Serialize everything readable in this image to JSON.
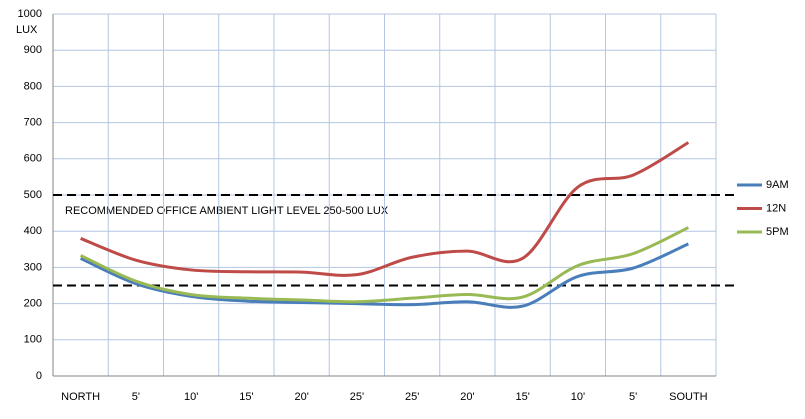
{
  "chart_data": {
    "type": "line",
    "y_label": "LUX",
    "annotation": "RECOMMENDED  OFFICE  AMBIENT  LIGHT  LEVEL  250-500  LUX",
    "reference_lines": [
      250,
      500
    ],
    "categories": [
      "NORTH",
      "5'",
      "10'",
      "15'",
      "20'",
      "25'",
      "25'",
      "20'",
      "15'",
      "10'",
      "5'",
      "SOUTH"
    ],
    "series": [
      {
        "name": "9AM",
        "color": "#4a7ebb",
        "values": [
          325,
          255,
          220,
          207,
          203,
          200,
          197,
          205,
          193,
          275,
          298,
          365
        ]
      },
      {
        "name": "12N",
        "color": "#be4b48",
        "values": [
          380,
          320,
          293,
          288,
          287,
          280,
          328,
          345,
          325,
          522,
          555,
          645
        ]
      },
      {
        "name": "5PM",
        "color": "#98b954",
        "values": [
          333,
          262,
          225,
          215,
          210,
          205,
          215,
          225,
          218,
          305,
          338,
          410
        ]
      }
    ],
    "ylim": [
      0,
      1000
    ],
    "yticks": [
      0,
      100,
      200,
      300,
      400,
      500,
      600,
      700,
      800,
      900,
      1000
    ],
    "grid": true,
    "smooth": true,
    "legend": "right"
  }
}
